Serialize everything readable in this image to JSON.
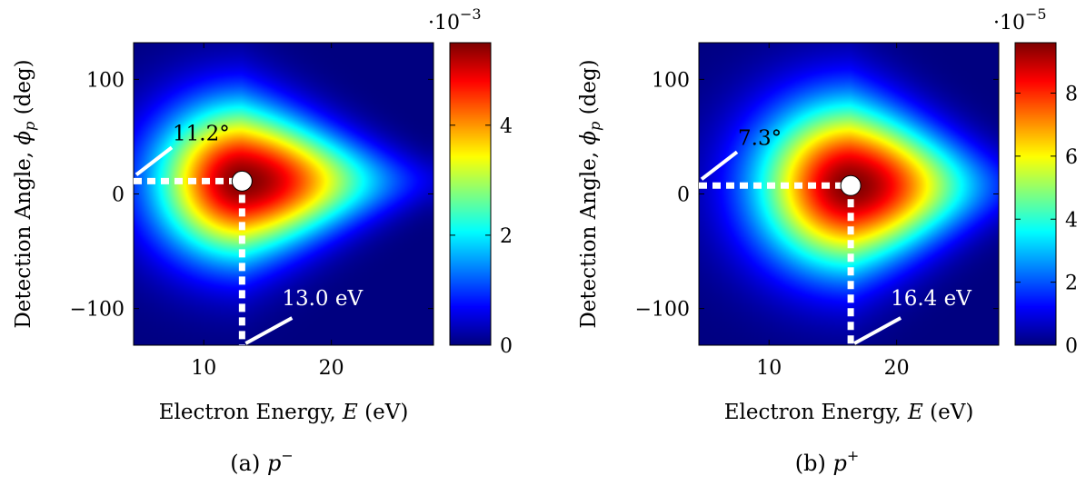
{
  "chart_data": [
    {
      "type": "heatmap",
      "panel": "a",
      "caption_prefix": "(a) ",
      "caption_symbol": "p",
      "caption_sup": "−",
      "xlabel": "Electron Energy, E (eV)",
      "ylabel": "Detection Angle, ϕ_p (deg)",
      "xlabel_parts": [
        "Electron Energy, ",
        "E",
        " (eV)"
      ],
      "ylabel_parts": [
        "Detection Angle, ",
        "ϕ",
        "p",
        " (deg)"
      ],
      "xlim": [
        4.5,
        28
      ],
      "ylim": [
        -132,
        132
      ],
      "xticks": [
        10,
        20
      ],
      "yticks": [
        100,
        0,
        -100
      ],
      "ytick_labels": [
        "100",
        "0",
        "−100"
      ],
      "colorbar": {
        "range": [
          0,
          5.5
        ],
        "ticks": [
          0,
          2,
          4
        ],
        "exponent_label": "·10",
        "exponent_power": "−3"
      },
      "peak": {
        "x": 13.0,
        "y": 11.2
      },
      "distribution": {
        "x_left_width": 4.6,
        "x_right_width": 6.8,
        "y_width": 46,
        "y_shift_per_ev": 1.6
      },
      "annotations": [
        {
          "text": "11.2°",
          "anchor": "angle"
        },
        {
          "text": "13.0 eV",
          "anchor": "energy"
        }
      ]
    },
    {
      "type": "heatmap",
      "panel": "b",
      "caption_prefix": "(b) ",
      "caption_symbol": "p",
      "caption_sup": "+",
      "xlabel": "Electron Energy, E (eV)",
      "ylabel": "Detection Angle, ϕ_p (deg)",
      "xlabel_parts": [
        "Electron Energy, ",
        "E",
        " (eV)"
      ],
      "ylabel_parts": [
        "Detection Angle, ",
        "ϕ",
        "p",
        " (deg)"
      ],
      "xlim": [
        4.5,
        28
      ],
      "ylim": [
        -132,
        132
      ],
      "xticks": [
        10,
        20
      ],
      "yticks": [
        100,
        0,
        -100
      ],
      "ytick_labels": [
        "100",
        "0",
        "−100"
      ],
      "colorbar": {
        "range": [
          0,
          9.6
        ],
        "ticks": [
          0,
          2,
          4,
          6,
          8
        ],
        "exponent_label": "·10",
        "exponent_power": "−5"
      },
      "peak": {
        "x": 16.4,
        "y": 7.3
      },
      "distribution": {
        "x_left_width": 5.0,
        "x_right_width": 6.2,
        "y_width": 50,
        "y_shift_per_ev": 1.4
      },
      "annotations": [
        {
          "text": "7.3°",
          "anchor": "angle"
        },
        {
          "text": "16.4 eV",
          "anchor": "energy"
        }
      ]
    }
  ]
}
